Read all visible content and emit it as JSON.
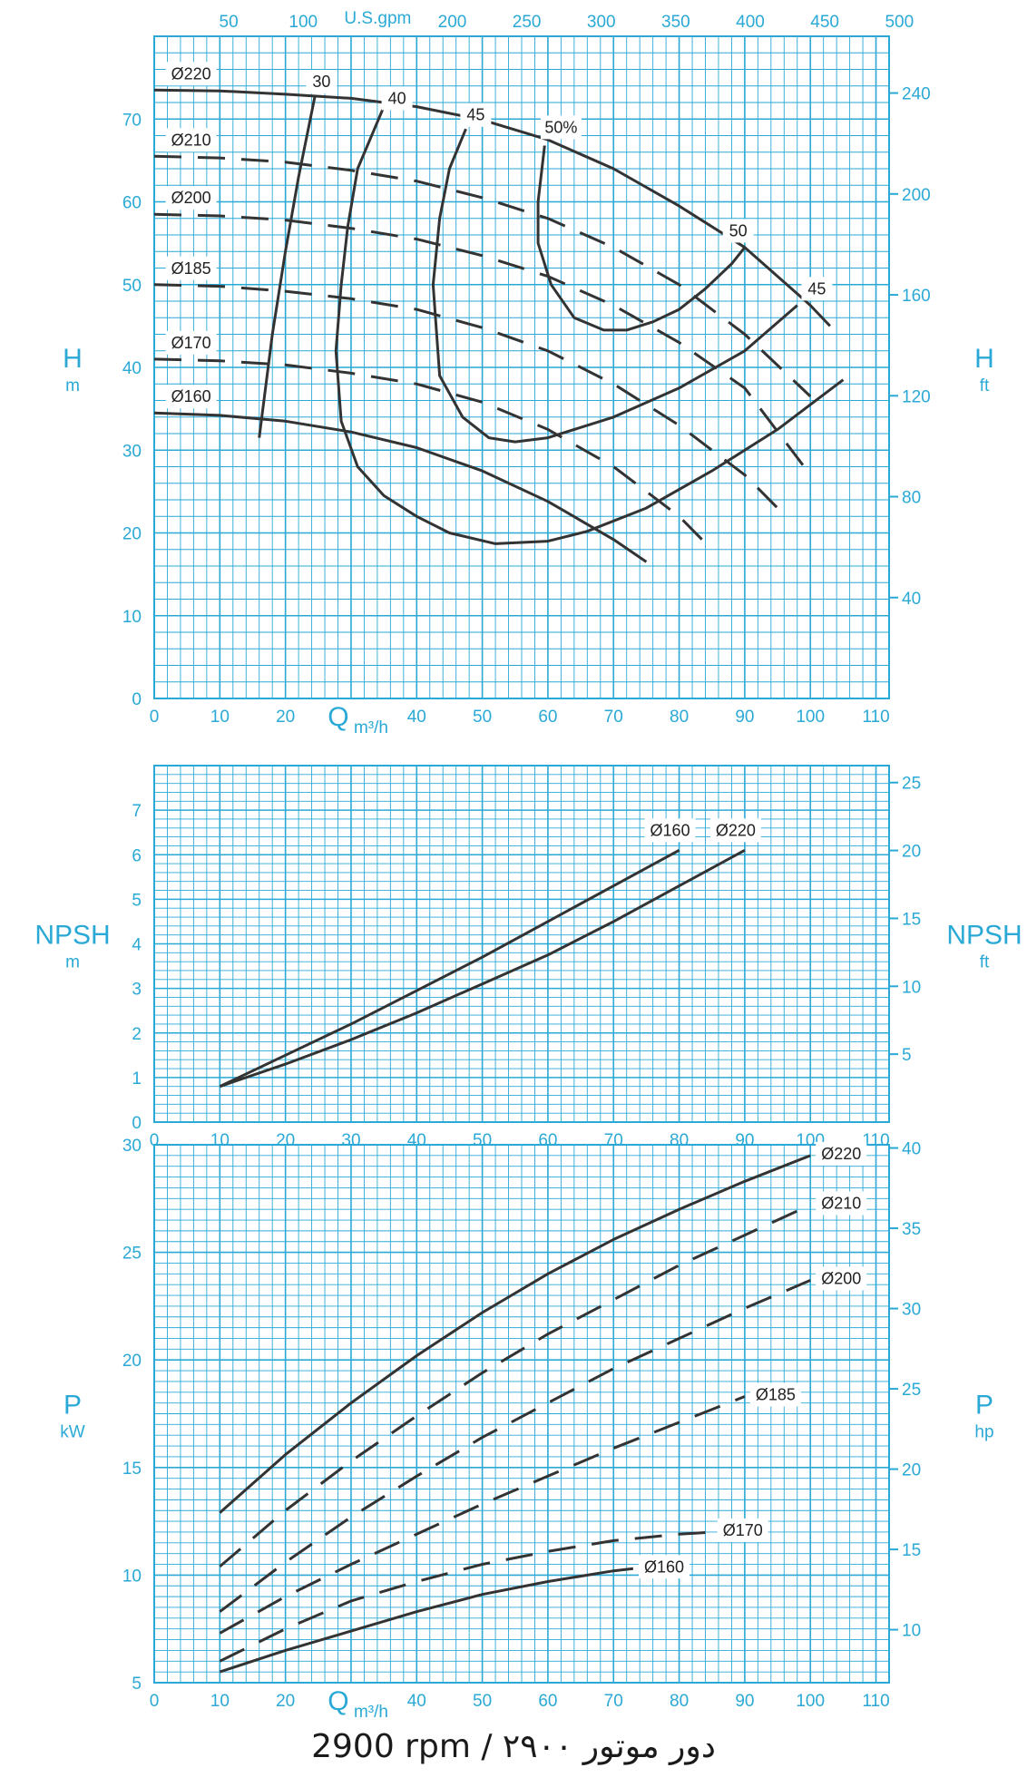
{
  "footer_text": "2900 rpm / ۲۹۰۰ دور موتور",
  "colors": {
    "grid": "#2aa9d6",
    "curve": "#333333",
    "text": "#2aa9d6"
  },
  "chart_data": [
    {
      "type": "line",
      "xlabel": "Q m³/h",
      "x2label": "U.S.gpm",
      "ylabel": "H",
      "ylabel_unit": "m",
      "y2label": "H",
      "y2label_unit": "ft",
      "xlim": [
        0,
        112
      ],
      "ylim": [
        0,
        80
      ],
      "y2lim": [
        0,
        262.5
      ],
      "xticks": [
        0,
        10,
        20,
        30,
        40,
        50,
        60,
        70,
        80,
        90,
        100,
        110
      ],
      "x2ticks": [
        50,
        100,
        150,
        200,
        250,
        300,
        350,
        400,
        450,
        500
      ],
      "yticks": [
        0,
        10,
        20,
        30,
        40,
        50,
        60,
        70
      ],
      "y2ticks": [
        40,
        80,
        120,
        160,
        200,
        240
      ],
      "grid": true,
      "series": [
        {
          "name": "Ø220",
          "style": "solid",
          "x": [
            0,
            10,
            20,
            30,
            40,
            50,
            60,
            70,
            80,
            90,
            100,
            103
          ],
          "y": [
            73.5,
            73.4,
            73.0,
            72.5,
            71.5,
            69.9,
            67.5,
            64.0,
            59.5,
            54.5,
            47.5,
            45.0
          ]
        },
        {
          "name": "Ø210",
          "style": "dashed",
          "x": [
            0,
            10,
            20,
            30,
            40,
            50,
            60,
            70,
            80,
            90,
            100
          ],
          "y": [
            65.5,
            65.3,
            64.8,
            63.8,
            62.5,
            60.5,
            58.0,
            54.5,
            50.0,
            44.0,
            36.5
          ]
        },
        {
          "name": "Ø200",
          "style": "dashed",
          "x": [
            0,
            10,
            20,
            30,
            40,
            50,
            60,
            70,
            80,
            90,
            100
          ],
          "y": [
            58.5,
            58.3,
            57.8,
            56.8,
            55.5,
            53.5,
            51.0,
            47.5,
            43.0,
            37.5,
            27.0
          ]
        },
        {
          "name": "Ø185",
          "style": "dashed",
          "x": [
            0,
            10,
            20,
            30,
            40,
            50,
            60,
            70,
            80,
            90,
            95
          ],
          "y": [
            50.0,
            49.8,
            49.2,
            48.3,
            47.0,
            44.8,
            42.0,
            38.0,
            33.0,
            27.0,
            23.0
          ]
        },
        {
          "name": "Ø170",
          "style": "dashed",
          "x": [
            0,
            10,
            20,
            30,
            40,
            50,
            60,
            70,
            80,
            85
          ],
          "y": [
            41.0,
            40.8,
            40.3,
            39.3,
            38.0,
            35.8,
            32.5,
            28.0,
            22.0,
            18.0
          ]
        },
        {
          "name": "Ø160",
          "style": "solid",
          "x": [
            0,
            10,
            20,
            30,
            40,
            50,
            60,
            70,
            75
          ],
          "y": [
            34.5,
            34.2,
            33.5,
            32.2,
            30.3,
            27.5,
            23.8,
            19.2,
            16.5
          ]
        }
      ],
      "efficiency": [
        {
          "name": "30",
          "x": [
            16,
            18,
            20,
            22,
            24.5
          ],
          "y": [
            31.5,
            44,
            54,
            63,
            72.8
          ]
        },
        {
          "name": "40",
          "x": [
            35,
            31,
            29.5,
            28.5,
            27.7,
            28.5,
            31,
            35,
            40,
            45,
            52,
            60,
            66,
            75,
            85,
            95,
            105
          ],
          "y": [
            71.5,
            64,
            57,
            50,
            42,
            33.5,
            28,
            24.5,
            22,
            20,
            18.7,
            19,
            20.2,
            23,
            27.5,
            32.5,
            38.5
          ]
        },
        {
          "name": "45",
          "x": [
            47.5,
            45,
            43.5,
            42.5,
            43.5,
            47,
            51,
            55,
            60,
            70,
            80,
            90,
            98
          ],
          "y": [
            68.8,
            64,
            58,
            50,
            39,
            34,
            31.5,
            31,
            31.5,
            34,
            37.5,
            42,
            47.5
          ]
        },
        {
          "name": "50%",
          "x": [
            59.5,
            58.5,
            58.5,
            60.5,
            64,
            68.5,
            72,
            76,
            80,
            84,
            88,
            90
          ],
          "y": [
            66.8,
            60,
            55,
            50,
            46,
            44.5,
            44.5,
            45.5,
            47,
            49.5,
            52.5,
            54.5
          ]
        }
      ],
      "annotations": [
        {
          "text": "30",
          "x": 25.5,
          "y": 74.5
        },
        {
          "text": "40",
          "x": 37,
          "y": 72.5
        },
        {
          "text": "45",
          "x": 49,
          "y": 70.5
        },
        {
          "text": "50%",
          "x": 62,
          "y": 69
        },
        {
          "text": "50",
          "x": 89,
          "y": 56.5
        },
        {
          "text": "45",
          "x": 101,
          "y": 49.5
        }
      ]
    },
    {
      "type": "line",
      "xlabel": "",
      "ylabel": "NPSH",
      "ylabel_unit": "m",
      "y2label": "NPSH",
      "y2label_unit": "ft",
      "xlim": [
        0,
        112
      ],
      "ylim": [
        0,
        8
      ],
      "y2lim": [
        0,
        26.25
      ],
      "xticks": [
        0,
        10,
        20,
        30,
        40,
        50,
        60,
        70,
        80,
        90,
        100,
        110
      ],
      "yticks": [
        0,
        1,
        2,
        3,
        4,
        5,
        6,
        7
      ],
      "y2ticks": [
        5,
        10,
        15,
        20,
        25
      ],
      "grid": true,
      "series": [
        {
          "name": "Ø160",
          "style": "solid",
          "x": [
            10,
            20,
            30,
            40,
            50,
            60,
            70,
            80
          ],
          "y": [
            0.8,
            1.5,
            2.2,
            2.95,
            3.7,
            4.5,
            5.3,
            6.1
          ]
        },
        {
          "name": "Ø220",
          "style": "solid",
          "x": [
            10,
            20,
            30,
            40,
            50,
            60,
            70,
            80,
            90
          ],
          "y": [
            0.8,
            1.3,
            1.85,
            2.45,
            3.1,
            3.75,
            4.5,
            5.3,
            6.1
          ]
        }
      ]
    },
    {
      "type": "line",
      "xlabel": "Q m³/h",
      "ylabel": "P",
      "ylabel_unit": "kW",
      "y2label": "P",
      "y2label_unit": "hp",
      "xlim": [
        0,
        112
      ],
      "ylim": [
        5,
        30
      ],
      "y2lim": [
        6.7,
        40.2
      ],
      "xticks": [
        0,
        10,
        20,
        30,
        40,
        50,
        60,
        70,
        80,
        90,
        100,
        110
      ],
      "yticks": [
        5,
        10,
        15,
        20,
        25,
        30
      ],
      "y2ticks": [
        10,
        15,
        20,
        25,
        30,
        35,
        40
      ],
      "grid": true,
      "series": [
        {
          "name": "Ø220",
          "style": "solid",
          "x": [
            10,
            20,
            30,
            40,
            50,
            60,
            70,
            80,
            90,
            100
          ],
          "y": [
            12.9,
            15.6,
            18.0,
            20.2,
            22.2,
            24.0,
            25.6,
            27.0,
            28.3,
            29.5
          ]
        },
        {
          "name": "Ø210",
          "style": "dashed",
          "x": [
            10,
            20,
            30,
            40,
            50,
            60,
            70,
            80,
            90,
            100
          ],
          "y": [
            10.4,
            13.0,
            15.3,
            17.4,
            19.4,
            21.2,
            22.8,
            24.4,
            25.8,
            27.2
          ]
        },
        {
          "name": "Ø200",
          "style": "dashed",
          "x": [
            10,
            20,
            30,
            40,
            50,
            60,
            70,
            80,
            90,
            100
          ],
          "y": [
            8.3,
            10.6,
            12.7,
            14.6,
            16.4,
            18.0,
            19.6,
            21.0,
            22.4,
            23.7
          ]
        },
        {
          "name": "Ø185",
          "style": "dashed",
          "x": [
            10,
            20,
            30,
            40,
            50,
            60,
            70,
            80,
            90
          ],
          "y": [
            7.3,
            9.0,
            10.5,
            11.9,
            13.3,
            14.6,
            15.9,
            17.1,
            18.3
          ]
        },
        {
          "name": "Ø170",
          "style": "dashed",
          "x": [
            10,
            20,
            30,
            40,
            50,
            60,
            70,
            80,
            85
          ],
          "y": [
            6.0,
            7.5,
            8.8,
            9.7,
            10.5,
            11.1,
            11.6,
            11.9,
            12.0
          ]
        },
        {
          "name": "Ø160",
          "style": "solid",
          "x": [
            10,
            20,
            30,
            40,
            50,
            60,
            70,
            73
          ],
          "y": [
            5.5,
            6.5,
            7.4,
            8.3,
            9.1,
            9.7,
            10.2,
            10.3
          ]
        }
      ]
    }
  ]
}
